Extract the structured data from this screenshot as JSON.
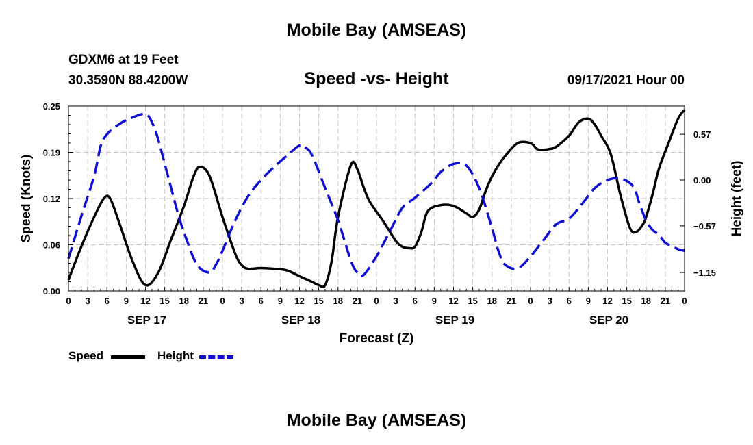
{
  "header": {
    "title": "Mobile Bay (AMSEAS)",
    "station": "GDXM6 at 19 Feet",
    "coords": "30.3590N  88.4200W",
    "subtitle": "Speed -vs- Height",
    "runtime": "09/17/2021 Hour 00"
  },
  "footer": {
    "title": "Mobile Bay (AMSEAS)"
  },
  "legend": {
    "speed_label": "Speed",
    "height_label": "Height"
  },
  "colors": {
    "speed": "#000000",
    "height": "#1010d0",
    "grid": "#c8c8c8"
  },
  "chart_data": {
    "type": "line",
    "title": "Speed -vs- Height",
    "xlabel": "Forecast (Z)",
    "ylabel_left": "Speed (Knots)",
    "ylabel_right": "Height (feet)",
    "xlim": [
      0,
      96
    ],
    "ylim_left": [
      0,
      0.25
    ],
    "ylim_right": [
      -1.38,
      0.92
    ],
    "x_tick_labels": [
      "0",
      "3",
      "6",
      "9",
      "12",
      "15",
      "18",
      "21",
      "0",
      "3",
      "6",
      "9",
      "12",
      "15",
      "18",
      "21",
      "0",
      "3",
      "6",
      "9",
      "12",
      "15",
      "18",
      "21",
      "0",
      "3",
      "6",
      "9",
      "12",
      "15",
      "18",
      "21",
      "0"
    ],
    "left_ticks": [
      {
        "value": 0.0,
        "label": "0.00"
      },
      {
        "value": 0.0625,
        "label": "0.06"
      },
      {
        "value": 0.125,
        "label": "0.12"
      },
      {
        "value": 0.1875,
        "label": "0.19"
      },
      {
        "value": 0.25,
        "label": "0.25"
      }
    ],
    "right_ticks": [
      {
        "value": 0.57,
        "label": "0.57"
      },
      {
        "value": 0.0,
        "label": "0.00"
      },
      {
        "value": -0.57,
        "label": "−0.57"
      },
      {
        "value": -1.15,
        "label": "−1.15"
      }
    ],
    "date_labels": [
      {
        "x": 12,
        "label": "SEP 17"
      },
      {
        "x": 36,
        "label": "SEP 18"
      },
      {
        "x": 60,
        "label": "SEP 19"
      },
      {
        "x": 84,
        "label": "SEP 20"
      }
    ],
    "series": [
      {
        "name": "Speed",
        "axis": "left",
        "x": [
          0,
          2,
          4,
          5.5,
          6.5,
          8,
          10,
          12,
          14,
          16,
          18,
          19.5,
          20.5,
          22,
          24,
          26,
          27,
          28,
          30,
          32,
          34,
          36,
          38,
          39,
          40,
          41,
          42,
          44,
          45,
          46,
          47,
          49,
          51,
          52,
          53,
          54,
          55,
          56,
          58,
          60,
          62,
          63,
          64,
          65,
          66,
          67,
          68,
          70,
          72,
          73,
          74,
          75,
          76,
          78,
          79.5,
          81,
          82,
          83,
          84.5,
          86,
          87.5,
          88.5,
          89.5,
          90,
          91,
          92,
          93.5,
          95,
          96
        ],
        "values": [
          0.015,
          0.06,
          0.1,
          0.125,
          0.125,
          0.09,
          0.04,
          0.008,
          0.025,
          0.07,
          0.115,
          0.155,
          0.168,
          0.155,
          0.1,
          0.05,
          0.035,
          0.03,
          0.031,
          0.03,
          0.028,
          0.02,
          0.012,
          0.008,
          0.008,
          0.04,
          0.1,
          0.17,
          0.165,
          0.14,
          0.12,
          0.095,
          0.068,
          0.06,
          0.058,
          0.06,
          0.08,
          0.108,
          0.116,
          0.115,
          0.105,
          0.1,
          0.11,
          0.135,
          0.155,
          0.17,
          0.182,
          0.2,
          0.2,
          0.192,
          0.191,
          0.192,
          0.195,
          0.21,
          0.228,
          0.233,
          0.225,
          0.21,
          0.185,
          0.13,
          0.085,
          0.08,
          0.09,
          0.1,
          0.13,
          0.165,
          0.2,
          0.233,
          0.245
        ]
      },
      {
        "name": "Height",
        "axis": "right",
        "x": [
          0,
          2,
          4,
          5,
          6,
          8,
          10,
          12,
          13,
          14,
          16,
          17,
          18,
          20,
          22,
          23,
          24,
          26,
          28,
          30,
          32,
          34,
          36,
          37,
          38,
          40,
          42,
          44,
          45,
          46,
          48,
          50,
          52,
          54,
          56,
          57,
          58,
          60,
          62,
          64,
          66,
          67,
          68,
          70,
          72,
          73,
          74,
          76,
          78,
          80,
          82,
          84,
          86,
          88,
          89,
          90,
          91,
          92,
          93,
          94,
          95,
          96
        ],
        "values": [
          -0.98,
          -0.45,
          0.05,
          0.42,
          0.57,
          0.7,
          0.78,
          0.82,
          0.72,
          0.5,
          -0.1,
          -0.4,
          -0.65,
          -1.05,
          -1.15,
          -1.05,
          -0.88,
          -0.5,
          -0.2,
          0.0,
          0.16,
          0.3,
          0.43,
          0.4,
          0.3,
          -0.1,
          -0.5,
          -1.0,
          -1.15,
          -1.18,
          -0.95,
          -0.65,
          -0.35,
          -0.22,
          -0.08,
          0.0,
          0.1,
          0.2,
          0.18,
          -0.1,
          -0.6,
          -0.88,
          -1.05,
          -1.1,
          -0.95,
          -0.85,
          -0.75,
          -0.55,
          -0.48,
          -0.3,
          -0.1,
          0.0,
          0.02,
          -0.08,
          -0.3,
          -0.5,
          -0.62,
          -0.68,
          -0.78,
          -0.82,
          -0.86,
          -0.88
        ]
      }
    ]
  }
}
